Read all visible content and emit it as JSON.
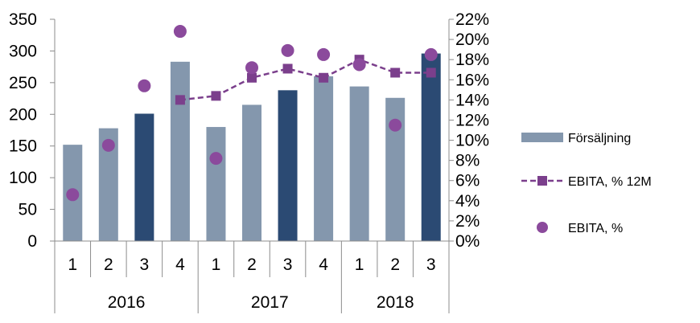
{
  "chart_data": {
    "type": "bar",
    "quarters": [
      "1",
      "2",
      "3",
      "4",
      "1",
      "2",
      "3",
      "4",
      "1",
      "2",
      "3"
    ],
    "years": [
      {
        "label": "2016",
        "span": 4
      },
      {
        "label": "2017",
        "span": 4
      },
      {
        "label": "2018",
        "span": 3
      }
    ],
    "left_axis": {
      "ylim": [
        0,
        350
      ],
      "ticks": [
        "0",
        "50",
        "100",
        "150",
        "200",
        "250",
        "300",
        "350"
      ]
    },
    "right_axis": {
      "ylim": [
        0,
        22
      ],
      "ticks": [
        "0%",
        "2%",
        "4%",
        "6%",
        "8%",
        "10%",
        "12%",
        "14%",
        "16%",
        "18%",
        "20%",
        "22%"
      ]
    },
    "series": [
      {
        "name": "Försäljning",
        "kind": "bar",
        "axis": "left",
        "values": [
          152,
          178,
          201,
          283,
          180,
          215,
          238,
          260,
          244,
          226,
          296
        ],
        "colors": [
          "#8497ad",
          "#8497ad",
          "#2b4a73",
          "#8497ad",
          "#8497ad",
          "#8497ad",
          "#2b4a73",
          "#8497ad",
          "#8497ad",
          "#8497ad",
          "#2b4a73"
        ]
      },
      {
        "name": "EBITA, % 12M",
        "kind": "line",
        "axis": "right",
        "color": "#7b3f8c",
        "start_index": 3,
        "values": [
          14.0,
          14.4,
          16.2,
          17.1,
          16.2,
          18.0,
          16.7,
          16.7
        ]
      },
      {
        "name": "EBITA, %",
        "kind": "scatter",
        "axis": "right",
        "color": "#8b4a9c",
        "values": [
          4.6,
          9.5,
          15.4,
          20.8,
          8.2,
          17.2,
          18.9,
          18.5,
          17.5,
          11.5,
          18.5
        ]
      }
    ],
    "legend_position": "right",
    "grid": false
  }
}
